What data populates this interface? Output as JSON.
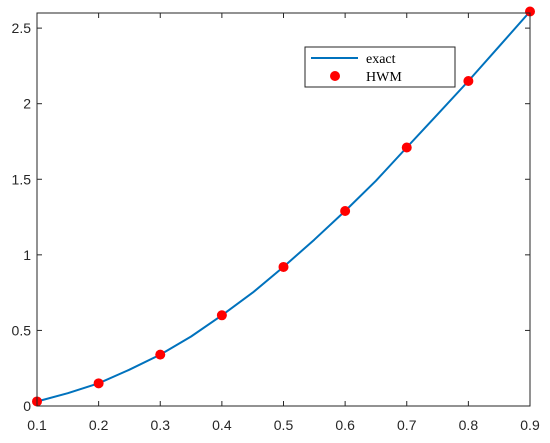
{
  "chart_data": {
    "type": "line",
    "title": "",
    "xlabel": "",
    "ylabel": "",
    "xlim": [
      0.1,
      0.9
    ],
    "ylim": [
      0,
      2.6
    ],
    "xticks": [
      "0.1",
      "0.2",
      "0.3",
      "0.4",
      "0.5",
      "0.6",
      "0.7",
      "0.8",
      "0.9"
    ],
    "yticks": [
      "0",
      "0.5",
      "1",
      "1.5",
      "2",
      "2.5"
    ],
    "grid": false,
    "legend_position": "top-right",
    "series": [
      {
        "name": "exact",
        "style": "line",
        "color": "#0072BD",
        "x": [
          0.1,
          0.15,
          0.2,
          0.25,
          0.3,
          0.35,
          0.4,
          0.45,
          0.5,
          0.55,
          0.6,
          0.65,
          0.7,
          0.75,
          0.8,
          0.85,
          0.9
        ],
        "y": [
          0.03,
          0.085,
          0.15,
          0.24,
          0.34,
          0.46,
          0.6,
          0.75,
          0.92,
          1.1,
          1.29,
          1.49,
          1.71,
          1.93,
          2.15,
          2.38,
          2.61
        ]
      },
      {
        "name": "HWM",
        "style": "scatter",
        "color": "#FF0000",
        "x": [
          0.1,
          0.2,
          0.3,
          0.4,
          0.5,
          0.6,
          0.7,
          0.8,
          0.9
        ],
        "y": [
          0.03,
          0.15,
          0.34,
          0.6,
          0.92,
          1.29,
          1.71,
          2.15,
          2.61
        ]
      }
    ]
  }
}
